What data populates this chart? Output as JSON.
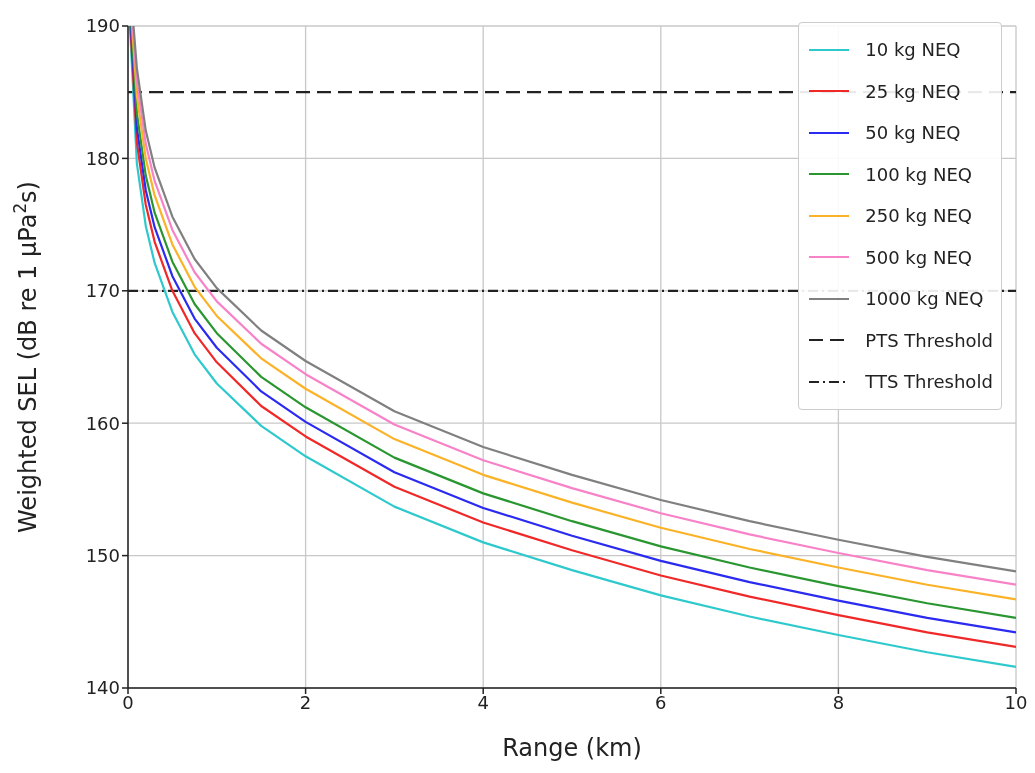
{
  "chart_data": {
    "type": "line",
    "xlabel": "Range (km)",
    "ylabel": "Weighted SEL (dB re 1 µPa$^{2}$s)",
    "xlim": [
      0,
      10
    ],
    "xticks": [
      0,
      2,
      4,
      6,
      8,
      10
    ],
    "ylim": [
      140,
      190
    ],
    "yticks": [
      140,
      150,
      160,
      170,
      180,
      190
    ],
    "grid": true,
    "legend": "top right",
    "line_style": "solid",
    "series": [
      {
        "name": "10 kg NEQ",
        "color": "#2ec9cc",
        "x": [
          0.022,
          0.1,
          0.2,
          0.3,
          0.5,
          0.75,
          1,
          1.5,
          2,
          3,
          4,
          5,
          6,
          7,
          8,
          9,
          10
        ],
        "values": [
          190,
          179.6,
          174.9,
          172.1,
          168.4,
          165.2,
          163.0,
          159.8,
          157.5,
          153.7,
          151.0,
          148.9,
          147.0,
          145.4,
          144.0,
          142.7,
          141.6
        ]
      },
      {
        "name": "25 kg NEQ",
        "color": "#f02828",
        "x": [
          0.027,
          0.1,
          0.2,
          0.3,
          0.5,
          0.75,
          1,
          1.5,
          2,
          3,
          4,
          5,
          6,
          7,
          8,
          9,
          10
        ],
        "values": [
          190,
          181.2,
          176.5,
          173.7,
          170.0,
          166.8,
          164.6,
          161.3,
          159.0,
          155.2,
          152.5,
          150.4,
          148.5,
          146.9,
          145.5,
          144.2,
          143.1
        ]
      },
      {
        "name": "50 kg NEQ",
        "color": "#2a2af0",
        "x": [
          0.032,
          0.1,
          0.2,
          0.3,
          0.5,
          0.75,
          1,
          1.5,
          2,
          3,
          4,
          5,
          6,
          7,
          8,
          9,
          10
        ],
        "values": [
          190,
          182.3,
          177.6,
          174.8,
          171.1,
          167.9,
          165.7,
          162.4,
          160.1,
          156.3,
          153.6,
          151.5,
          149.6,
          148.0,
          146.6,
          145.3,
          144.2
        ]
      },
      {
        "name": "100 kg NEQ",
        "color": "#2a9630",
        "x": [
          0.038,
          0.1,
          0.2,
          0.3,
          0.5,
          0.75,
          1,
          1.5,
          2,
          3,
          4,
          5,
          6,
          7,
          8,
          9,
          10
        ],
        "values": [
          190,
          183.4,
          178.7,
          175.9,
          172.2,
          169.0,
          166.8,
          163.5,
          161.2,
          157.4,
          154.7,
          152.6,
          150.7,
          149.1,
          147.7,
          146.4,
          145.3
        ]
      },
      {
        "name": "250 kg NEQ",
        "color": "#fbb226",
        "x": [
          0.046,
          0.1,
          0.2,
          0.3,
          0.5,
          0.75,
          1,
          1.5,
          2,
          3,
          4,
          5,
          6,
          7,
          8,
          9,
          10
        ],
        "values": [
          190,
          184.7,
          180.0,
          177.2,
          173.5,
          170.3,
          168.1,
          164.9,
          162.6,
          158.8,
          156.1,
          154.0,
          152.1,
          150.5,
          149.1,
          147.8,
          146.7
        ]
      },
      {
        "name": "500 kg NEQ",
        "color": "#f882c8",
        "x": [
          0.054,
          0.1,
          0.2,
          0.3,
          0.5,
          0.75,
          1,
          1.5,
          2,
          3,
          4,
          5,
          6,
          7,
          8,
          9,
          10
        ],
        "values": [
          190,
          185.8,
          181.1,
          178.3,
          174.6,
          171.4,
          169.2,
          166.0,
          163.7,
          159.9,
          157.2,
          155.1,
          153.2,
          151.6,
          150.2,
          148.9,
          147.8
        ]
      },
      {
        "name": "1000 kg NEQ",
        "color": "#808080",
        "x": [
          0.062,
          0.1,
          0.2,
          0.3,
          0.5,
          0.75,
          1,
          1.5,
          2,
          3,
          4,
          5,
          6,
          7,
          8,
          9,
          10
        ],
        "values": [
          190,
          186.8,
          182.1,
          179.3,
          175.6,
          172.4,
          170.2,
          167.0,
          164.7,
          160.9,
          158.2,
          156.1,
          154.2,
          152.6,
          151.2,
          149.9,
          148.8
        ]
      }
    ],
    "ref_lines": [
      {
        "axis": "y",
        "value": 185,
        "label": "PTS Threshold",
        "color": "#222222",
        "line_style": "dashed"
      },
      {
        "axis": "y",
        "value": 170,
        "label": "TTS Threshold",
        "color": "#222222",
        "line_style": "dashdot"
      }
    ]
  }
}
